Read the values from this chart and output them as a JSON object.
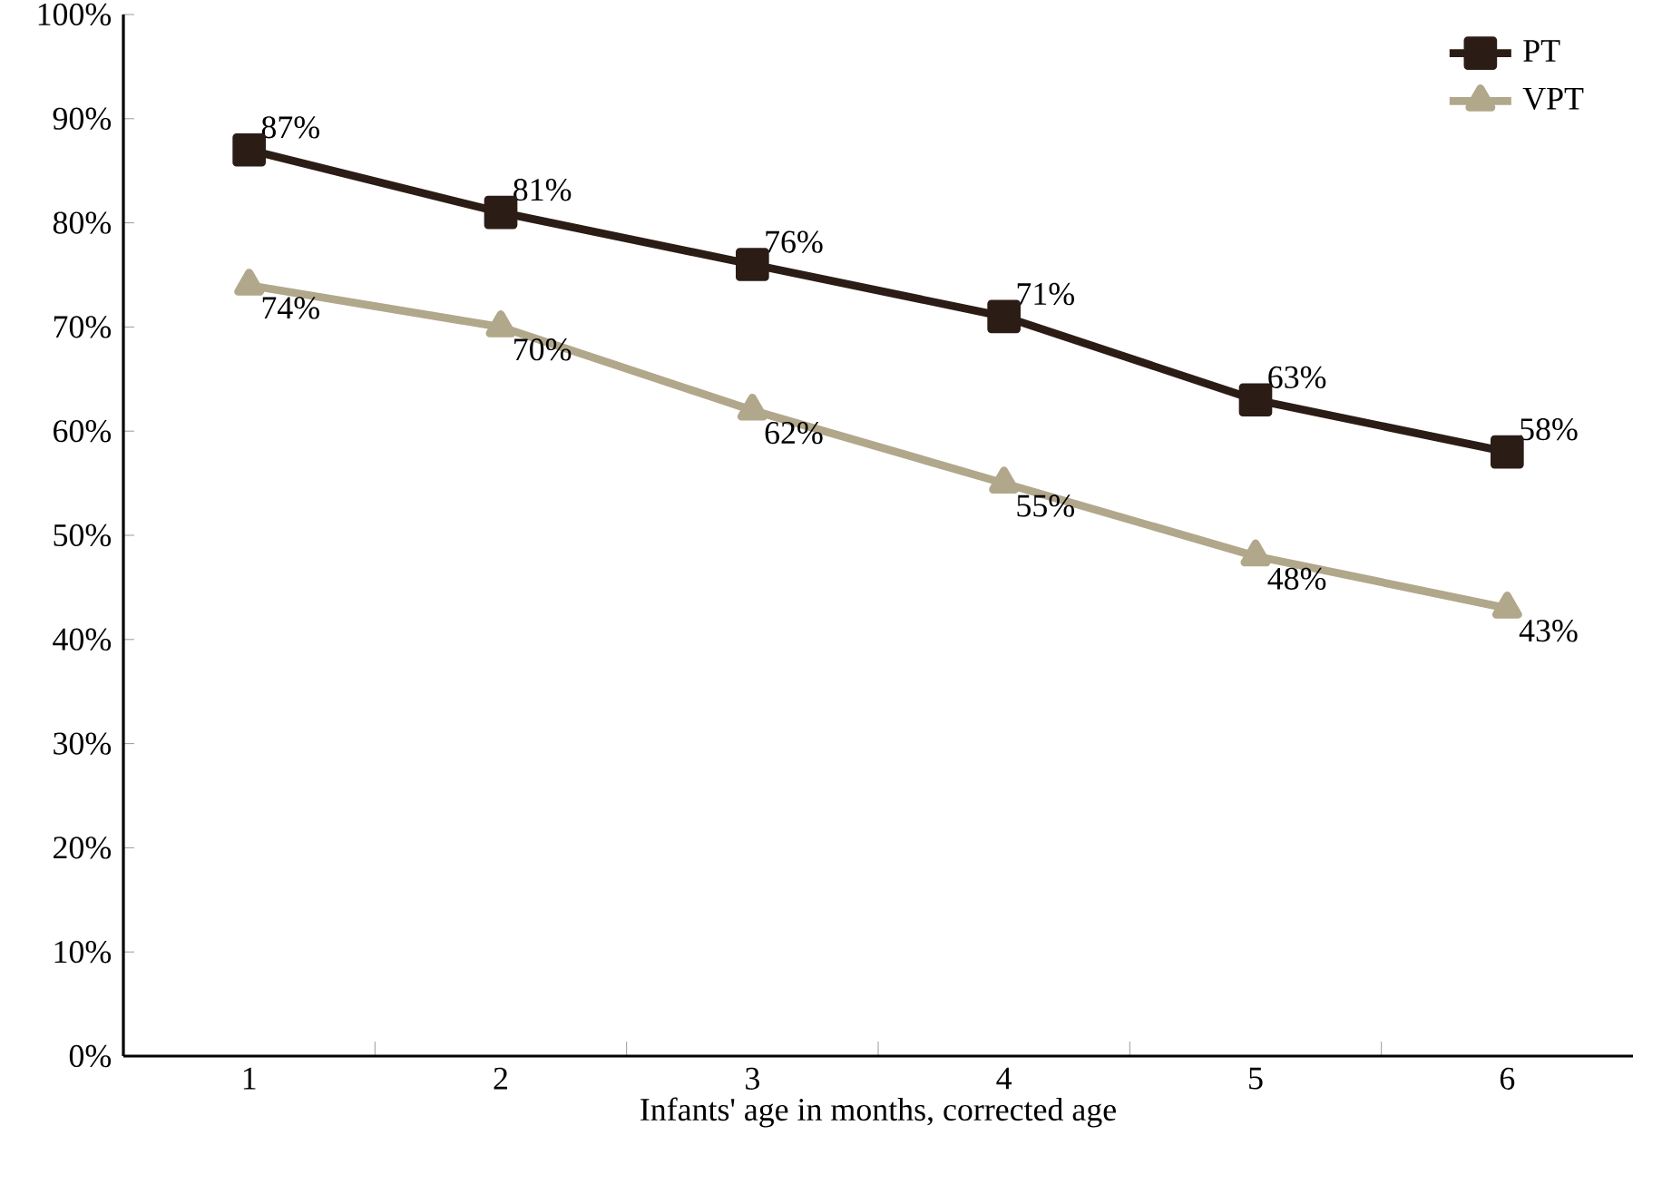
{
  "chart_data": {
    "type": "line",
    "xlabel": "Infants' age in months, corrected age",
    "categories": [
      "1",
      "2",
      "3",
      "4",
      "5",
      "6"
    ],
    "series": [
      {
        "name": "PT",
        "color": "#2b1d16",
        "marker": "square",
        "values": [
          87,
          81,
          76,
          71,
          63,
          58
        ],
        "value_labels": [
          "87%",
          "81%",
          "76%",
          "71%",
          "63%",
          "58%"
        ]
      },
      {
        "name": "VPT",
        "color": "#b1a78b",
        "marker": "triangle",
        "values": [
          74,
          70,
          62,
          55,
          48,
          43
        ],
        "value_labels": [
          "74%",
          "70%",
          "62%",
          "55%",
          "48%",
          "43%"
        ]
      }
    ],
    "ylim": [
      0,
      100
    ],
    "yticks": [
      {
        "value": 0,
        "label": "0%"
      },
      {
        "value": 10,
        "label": "10%"
      },
      {
        "value": 20,
        "label": "20%"
      },
      {
        "value": 30,
        "label": "30%"
      },
      {
        "value": 40,
        "label": "40%"
      },
      {
        "value": 50,
        "label": "50%"
      },
      {
        "value": 60,
        "label": "60%"
      },
      {
        "value": 70,
        "label": "70%"
      },
      {
        "value": 80,
        "label": "80%"
      },
      {
        "value": 90,
        "label": "90%"
      },
      {
        "value": 100,
        "label": "100%"
      }
    ],
    "grid": false,
    "legend": "top right",
    "line_style": "solid"
  }
}
